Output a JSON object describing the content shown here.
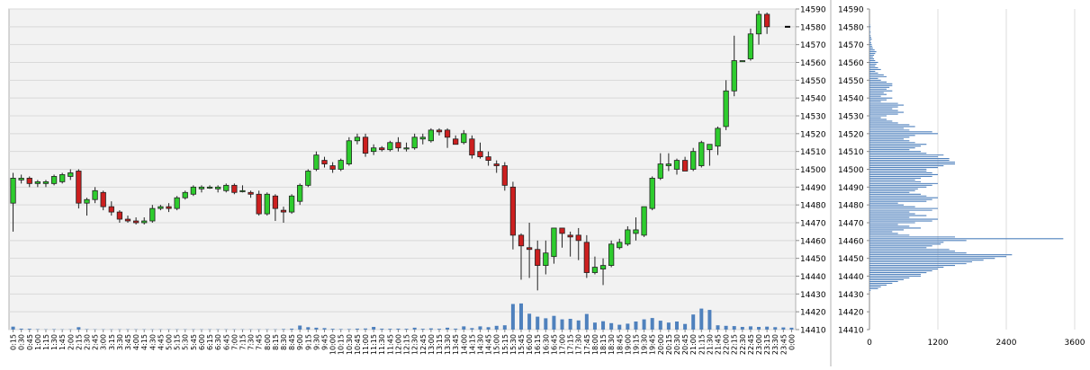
{
  "chart_data": [
    {
      "type": "candlestick",
      "ylim": [
        14410,
        14590
      ],
      "yticks": [
        14590,
        14580,
        14570,
        14560,
        14550,
        14540,
        14530,
        14520,
        14510,
        14500,
        14490,
        14480,
        14470,
        14460,
        14450,
        14440,
        14430,
        14420,
        14410
      ],
      "x_tick_labels": [
        "0:15",
        "0:30",
        "0:45",
        "1:00",
        "1:15",
        "1:30",
        "1:45",
        "2:00",
        "2:15",
        "2:30",
        "2:45",
        "3:00",
        "3:15",
        "3:30",
        "3:45",
        "4:00",
        "4:15",
        "4:30",
        "4:45",
        "5:00",
        "5:15",
        "5:30",
        "5:45",
        "6:00",
        "6:15",
        "6:30",
        "6:45",
        "7:00",
        "7:15",
        "7:30",
        "7:45",
        "8:00",
        "8:15",
        "8:30",
        "8:45",
        "9:00",
        "9:15",
        "9:30",
        "9:45",
        "10:00",
        "10:15",
        "10:30",
        "10:45",
        "11:00",
        "11:15",
        "11:30",
        "11:45",
        "12:00",
        "12:15",
        "12:30",
        "12:45",
        "13:00",
        "13:15",
        "13:30",
        "13:45",
        "14:00",
        "14:15",
        "14:30",
        "14:45",
        "15:00",
        "15:15",
        "15:30",
        "15:45",
        "16:00",
        "16:15",
        "16:30",
        "16:45",
        "17:00",
        "17:15",
        "17:30",
        "17:45",
        "18:00",
        "18:15",
        "18:30",
        "18:45",
        "19:00",
        "19:15",
        "19:30",
        "19:45",
        "20:00",
        "20:15",
        "20:30",
        "20:45",
        "21:00",
        "21:15",
        "21:30",
        "21:45",
        "22:00",
        "22:15",
        "22:30",
        "22:45",
        "23:00",
        "23:15",
        "23:30",
        "23:45",
        "0:00"
      ],
      "candles": [
        {
          "o": 14481,
          "h": 14498,
          "l": 14465,
          "c": 14495
        },
        {
          "o": 14494,
          "h": 14497,
          "l": 14492,
          "c": 14495
        },
        {
          "o": 14495,
          "h": 14496,
          "l": 14490,
          "c": 14492
        },
        {
          "o": 14492,
          "h": 14494,
          "l": 14490,
          "c": 14493
        },
        {
          "o": 14492,
          "h": 14494,
          "l": 14490,
          "c": 14493
        },
        {
          "o": 14492,
          "h": 14497,
          "l": 14491,
          "c": 14496
        },
        {
          "o": 14493,
          "h": 14498,
          "l": 14492,
          "c": 14497
        },
        {
          "o": 14496,
          "h": 14500,
          "l": 14494,
          "c": 14498
        },
        {
          "o": 14499,
          "h": 14500,
          "l": 14478,
          "c": 14481
        },
        {
          "o": 14481,
          "h": 14484,
          "l": 14474,
          "c": 14483
        },
        {
          "o": 14483,
          "h": 14490,
          "l": 14481,
          "c": 14488
        },
        {
          "o": 14487,
          "h": 14488,
          "l": 14477,
          "c": 14479
        },
        {
          "o": 14479,
          "h": 14482,
          "l": 14474,
          "c": 14476
        },
        {
          "o": 14476,
          "h": 14477,
          "l": 14470,
          "c": 14472
        },
        {
          "o": 14472,
          "h": 14474,
          "l": 14470,
          "c": 14471
        },
        {
          "o": 14471,
          "h": 14473,
          "l": 14469,
          "c": 14470
        },
        {
          "o": 14470,
          "h": 14473,
          "l": 14469,
          "c": 14471
        },
        {
          "o": 14471,
          "h": 14480,
          "l": 14470,
          "c": 14478
        },
        {
          "o": 14478,
          "h": 14480,
          "l": 14477,
          "c": 14479
        },
        {
          "o": 14479,
          "h": 14481,
          "l": 14476,
          "c": 14478
        },
        {
          "o": 14478,
          "h": 14485,
          "l": 14477,
          "c": 14484
        },
        {
          "o": 14484,
          "h": 14488,
          "l": 14483,
          "c": 14487
        },
        {
          "o": 14486,
          "h": 14491,
          "l": 14485,
          "c": 14490
        },
        {
          "o": 14489,
          "h": 14491,
          "l": 14487,
          "c": 14490
        },
        {
          "o": 14490,
          "h": 14491,
          "l": 14489,
          "c": 14490
        },
        {
          "o": 14489,
          "h": 14491,
          "l": 14487,
          "c": 14490
        },
        {
          "o": 14488,
          "h": 14492,
          "l": 14487,
          "c": 14491
        },
        {
          "o": 14491,
          "h": 14492,
          "l": 14486,
          "c": 14487
        },
        {
          "o": 14488,
          "h": 14491,
          "l": 14487,
          "c": 14488
        },
        {
          "o": 14487,
          "h": 14488,
          "l": 14484,
          "c": 14486
        },
        {
          "o": 14486,
          "h": 14488,
          "l": 14474,
          "c": 14475
        },
        {
          "o": 14475,
          "h": 14487,
          "l": 14474,
          "c": 14486
        },
        {
          "o": 14485,
          "h": 14486,
          "l": 14471,
          "c": 14478
        },
        {
          "o": 14477,
          "h": 14479,
          "l": 14470,
          "c": 14476
        },
        {
          "o": 14476,
          "h": 14486,
          "l": 14475,
          "c": 14485
        },
        {
          "o": 14482,
          "h": 14492,
          "l": 14480,
          "c": 14491
        },
        {
          "o": 14491,
          "h": 14500,
          "l": 14490,
          "c": 14499
        },
        {
          "o": 14500,
          "h": 14510,
          "l": 14499,
          "c": 14508
        },
        {
          "o": 14505,
          "h": 14507,
          "l": 14501,
          "c": 14503
        },
        {
          "o": 14502,
          "h": 14504,
          "l": 14498,
          "c": 14500
        },
        {
          "o": 14500,
          "h": 14506,
          "l": 14499,
          "c": 14505
        },
        {
          "o": 14503,
          "h": 14518,
          "l": 14502,
          "c": 14516
        },
        {
          "o": 14516,
          "h": 14520,
          "l": 14514,
          "c": 14518
        },
        {
          "o": 14518,
          "h": 14520,
          "l": 14507,
          "c": 14509
        },
        {
          "o": 14510,
          "h": 14514,
          "l": 14508,
          "c": 14512
        },
        {
          "o": 14512,
          "h": 14513,
          "l": 14510,
          "c": 14511
        },
        {
          "o": 14511,
          "h": 14516,
          "l": 14510,
          "c": 14515
        },
        {
          "o": 14515,
          "h": 14518,
          "l": 14510,
          "c": 14512
        },
        {
          "o": 14512,
          "h": 14515,
          "l": 14510,
          "c": 14512
        },
        {
          "o": 14512,
          "h": 14520,
          "l": 14511,
          "c": 14518
        },
        {
          "o": 14517,
          "h": 14520,
          "l": 14514,
          "c": 14518
        },
        {
          "o": 14516,
          "h": 14523,
          "l": 14515,
          "c": 14522
        },
        {
          "o": 14522,
          "h": 14523,
          "l": 14519,
          "c": 14521
        },
        {
          "o": 14522,
          "h": 14523,
          "l": 14512,
          "c": 14518
        },
        {
          "o": 14517,
          "h": 14519,
          "l": 14514,
          "c": 14514
        },
        {
          "o": 14515,
          "h": 14522,
          "l": 14514,
          "c": 14520
        },
        {
          "o": 14517,
          "h": 14519,
          "l": 14506,
          "c": 14508
        },
        {
          "o": 14510,
          "h": 14515,
          "l": 14506,
          "c": 14507
        },
        {
          "o": 14507,
          "h": 14510,
          "l": 14502,
          "c": 14505
        },
        {
          "o": 14503,
          "h": 14505,
          "l": 14498,
          "c": 14502
        },
        {
          "o": 14502,
          "h": 14504,
          "l": 14488,
          "c": 14491
        },
        {
          "o": 14490,
          "h": 14493,
          "l": 14455,
          "c": 14463
        },
        {
          "o": 14463,
          "h": 14464,
          "l": 14438,
          "c": 14457
        },
        {
          "o": 14456,
          "h": 14470,
          "l": 14439,
          "c": 14455
        },
        {
          "o": 14455,
          "h": 14460,
          "l": 14432,
          "c": 14446
        },
        {
          "o": 14446,
          "h": 14460,
          "l": 14441,
          "c": 14453
        },
        {
          "o": 14451,
          "h": 14466,
          "l": 14447,
          "c": 14467
        },
        {
          "o": 14467,
          "h": 14466,
          "l": 14456,
          "c": 14464
        },
        {
          "o": 14463,
          "h": 14465,
          "l": 14451,
          "c": 14462
        },
        {
          "o": 14463,
          "h": 14467,
          "l": 14449,
          "c": 14460
        },
        {
          "o": 14459,
          "h": 14463,
          "l": 14439,
          "c": 14442
        },
        {
          "o": 14442,
          "h": 14451,
          "l": 14441,
          "c": 14445
        },
        {
          "o": 14444,
          "h": 14450,
          "l": 14435,
          "c": 14446
        },
        {
          "o": 14446,
          "h": 14460,
          "l": 14445,
          "c": 14458
        },
        {
          "o": 14456,
          "h": 14461,
          "l": 14455,
          "c": 14459
        },
        {
          "o": 14458,
          "h": 14468,
          "l": 14457,
          "c": 14466
        },
        {
          "o": 14464,
          "h": 14473,
          "l": 14460,
          "c": 14466
        },
        {
          "o": 14463,
          "h": 14479,
          "l": 14462,
          "c": 14479
        },
        {
          "o": 14478,
          "h": 14496,
          "l": 14477,
          "c": 14495
        },
        {
          "o": 14495,
          "h": 14509,
          "l": 14494,
          "c": 14503
        },
        {
          "o": 14502,
          "h": 14509,
          "l": 14499,
          "c": 14503
        },
        {
          "o": 14500,
          "h": 14506,
          "l": 14497,
          "c": 14505
        },
        {
          "o": 14505,
          "h": 14507,
          "l": 14499,
          "c": 14499
        },
        {
          "o": 14500,
          "h": 14512,
          "l": 14499,
          "c": 14510
        },
        {
          "o": 14502,
          "h": 14516,
          "l": 14501,
          "c": 14515
        },
        {
          "o": 14511,
          "h": 14514,
          "l": 14502,
          "c": 14514
        },
        {
          "o": 14513,
          "h": 14524,
          "l": 14508,
          "c": 14523
        },
        {
          "o": 14524,
          "h": 14550,
          "l": 14522,
          "c": 14544
        },
        {
          "o": 14544,
          "h": 14575,
          "l": 14541,
          "c": 14561
        },
        {
          "o": 14561,
          "h": 14561,
          "l": 14561,
          "c": 14561
        },
        {
          "o": 14562,
          "h": 14579,
          "l": 14561,
          "c": 14576
        },
        {
          "o": 14576,
          "h": 14589,
          "l": 14570,
          "c": 14587
        },
        {
          "o": 14587,
          "h": 14588,
          "l": 14576,
          "c": 14580
        }
      ],
      "last_price": 14580,
      "volume_max": 12000,
      "volume": [
        1100,
        350,
        300,
        150,
        100,
        150,
        100,
        100,
        900,
        150,
        100,
        100,
        100,
        100,
        100,
        100,
        100,
        100,
        100,
        100,
        100,
        100,
        100,
        100,
        100,
        100,
        100,
        100,
        100,
        100,
        100,
        100,
        100,
        200,
        350,
        1500,
        900,
        700,
        550,
        300,
        200,
        200,
        350,
        400,
        1000,
        350,
        300,
        350,
        300,
        700,
        300,
        450,
        300,
        700,
        350,
        1200,
        550,
        1200,
        900,
        1400,
        1600,
        9500,
        9700,
        5900,
        4800,
        4200,
        5100,
        3800,
        4000,
        3400,
        5800,
        2600,
        3100,
        2400,
        1800,
        2200,
        3000,
        3800,
        4300,
        3300,
        2600,
        3000,
        2100,
        5600,
        7800,
        7300,
        1600,
        1400,
        1300,
        1000,
        1200,
        1000,
        1100,
        900,
        800,
        700
      ]
    },
    {
      "type": "bar",
      "orientation": "horizontal",
      "title": "",
      "xlabel": "",
      "ylabel": "",
      "xlim": [
        0,
        3600
      ],
      "xticks": [
        0,
        1200,
        2400,
        3600
      ],
      "ylim": [
        14410,
        14590
      ],
      "yticks": [
        14590,
        14580,
        14570,
        14560,
        14550,
        14540,
        14530,
        14520,
        14510,
        14500,
        14490,
        14480,
        14470,
        14460,
        14450,
        14440,
        14430,
        14420,
        14410
      ],
      "price_start": 14432,
      "price_step": 1,
      "values": [
        20,
        150,
        200,
        300,
        400,
        500,
        600,
        700,
        900,
        900,
        1000,
        1100,
        1200,
        1300,
        1500,
        1700,
        1800,
        2000,
        2200,
        2400,
        2500,
        1700,
        1500,
        1400,
        1000,
        1100,
        1250,
        1300,
        1700,
        3400,
        1500,
        700,
        500,
        400,
        600,
        900,
        700,
        500,
        800,
        1100,
        1200,
        700,
        1000,
        800,
        700,
        1100,
        1200,
        800,
        600,
        500,
        1000,
        1100,
        1200,
        1000,
        900,
        700,
        800,
        850,
        1000,
        1100,
        1200,
        900,
        800,
        900,
        1100,
        1200,
        1100,
        1000,
        1000,
        1200,
        1300,
        1500,
        1500,
        1400,
        1400,
        1200,
        1300,
        1000,
        900,
        700,
        800,
        900,
        1000,
        800,
        700,
        600,
        700,
        800,
        1200,
        1100,
        700,
        600,
        800,
        700,
        500,
        400,
        300,
        200,
        300,
        500,
        600,
        500,
        400,
        500,
        600,
        500,
        200,
        300,
        400,
        200,
        300,
        250,
        400,
        300,
        350,
        400,
        400,
        300,
        200,
        150,
        300,
        250,
        150,
        100,
        200,
        150,
        100,
        120,
        150,
        100,
        80,
        60,
        80,
        100,
        120,
        90,
        60,
        50,
        40,
        30,
        20,
        40,
        30,
        20,
        10,
        20,
        10,
        10,
        20,
        10
      ]
    }
  ]
}
